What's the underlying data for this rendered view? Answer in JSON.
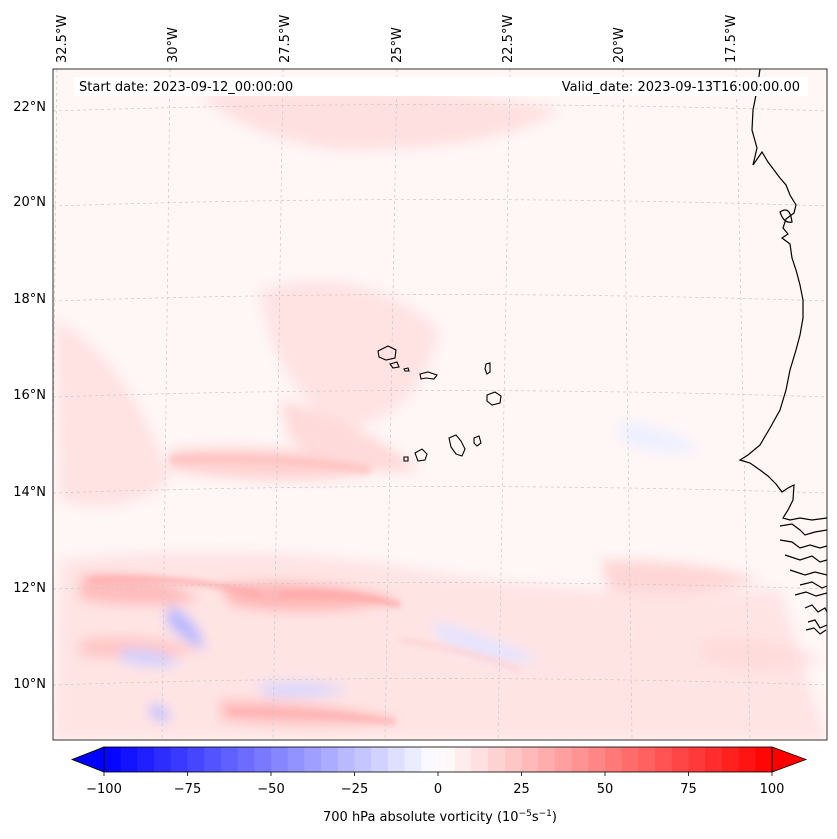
{
  "map": {
    "start_date_label": "Start date: 2023-09-12_00:00:00",
    "valid_date_label": "Valid_date: 2023-09-13T16:00:00.00",
    "lon_labels": [
      "32.5°W",
      "30°W",
      "27.5°W",
      "25°W",
      "22.5°W",
      "20°W",
      "17.5°W"
    ],
    "lat_labels": [
      "22°N",
      "20°N",
      "18°N",
      "16°N",
      "14°N",
      "12°N",
      "10°N"
    ],
    "field_name": "700 hPa absolute vorticity"
  },
  "colorbar": {
    "ticks": [
      "−100",
      "−75",
      "−50",
      "−25",
      "0",
      "25",
      "50",
      "75",
      "100"
    ],
    "label_prefix": "700 hPa absolute vorticity (10",
    "label_exp1": "−5",
    "label_mid": "s",
    "label_exp2": "−1",
    "label_suffix": ")",
    "min": -100,
    "max": 100,
    "step": 5,
    "colors": {
      "negative": "#0000ff",
      "neutral": "#ffffff",
      "positive": "#ff0000"
    }
  }
}
